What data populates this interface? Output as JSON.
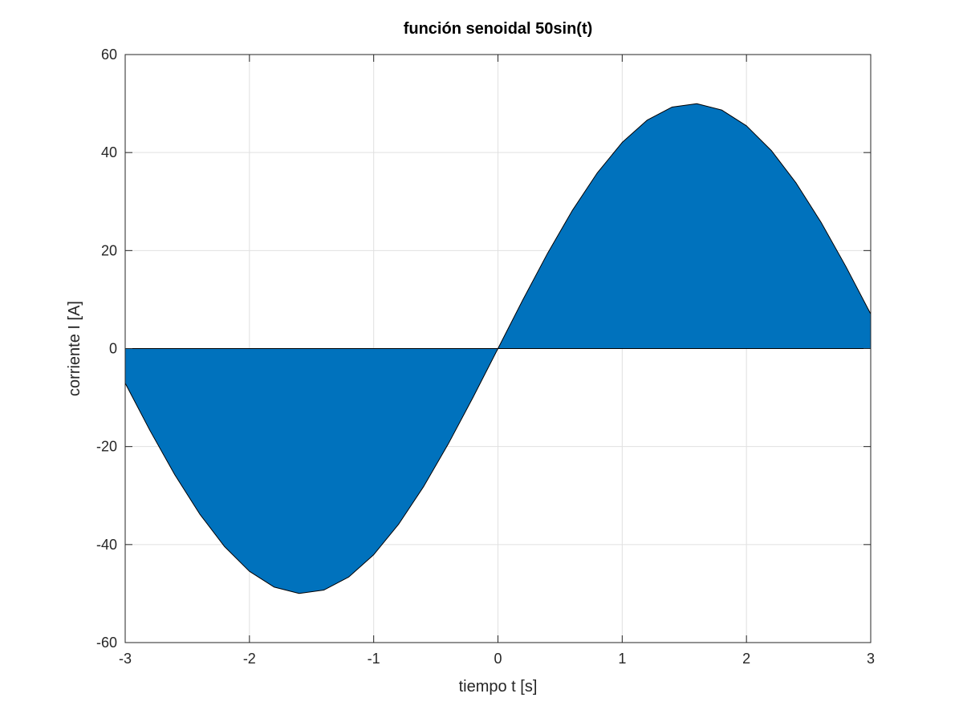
{
  "chart_data": {
    "type": "area",
    "title": "función senoidal 50sin(t)",
    "xlabel": "tiempo t [s]",
    "ylabel": "corriente I [A]",
    "xlim": [
      -3,
      3
    ],
    "ylim": [
      -60,
      60
    ],
    "xticks": [
      -3,
      -2,
      -1,
      0,
      1,
      2,
      3
    ],
    "yticks": [
      -60,
      -40,
      -20,
      0,
      20,
      40,
      60
    ],
    "xtick_labels": [
      "-3",
      "-2",
      "-1",
      "0",
      "1",
      "2",
      "3"
    ],
    "ytick_labels": [
      "-60",
      "-40",
      "-20",
      "0",
      "20",
      "40",
      "60"
    ],
    "grid": true,
    "baseline": 0,
    "series": [
      {
        "x": [
          -3.0,
          -2.8,
          -2.6,
          -2.4,
          -2.2,
          -2.0,
          -1.8,
          -1.6,
          -1.4,
          -1.2,
          -1.0,
          -0.8,
          -0.6,
          -0.4,
          -0.2,
          0.0,
          0.2,
          0.4,
          0.6,
          0.8,
          1.0,
          1.2,
          1.4,
          1.6,
          1.8,
          2.0,
          2.2,
          2.4,
          2.6,
          2.8,
          3.0
        ],
        "y": [
          -7.06,
          -16.75,
          -25.78,
          -33.77,
          -40.42,
          -45.46,
          -48.69,
          -49.98,
          -49.27,
          -46.6,
          -42.07,
          -35.87,
          -28.23,
          -19.47,
          -9.93,
          0.0,
          9.93,
          19.47,
          28.23,
          35.87,
          42.07,
          46.6,
          49.27,
          49.98,
          48.69,
          45.46,
          40.42,
          33.77,
          25.78,
          16.75,
          7.06
        ]
      }
    ],
    "colors": {
      "fill": "#0072bd",
      "edge": "#000000",
      "grid": "#e0e0e0",
      "axis": "#262626"
    }
  }
}
